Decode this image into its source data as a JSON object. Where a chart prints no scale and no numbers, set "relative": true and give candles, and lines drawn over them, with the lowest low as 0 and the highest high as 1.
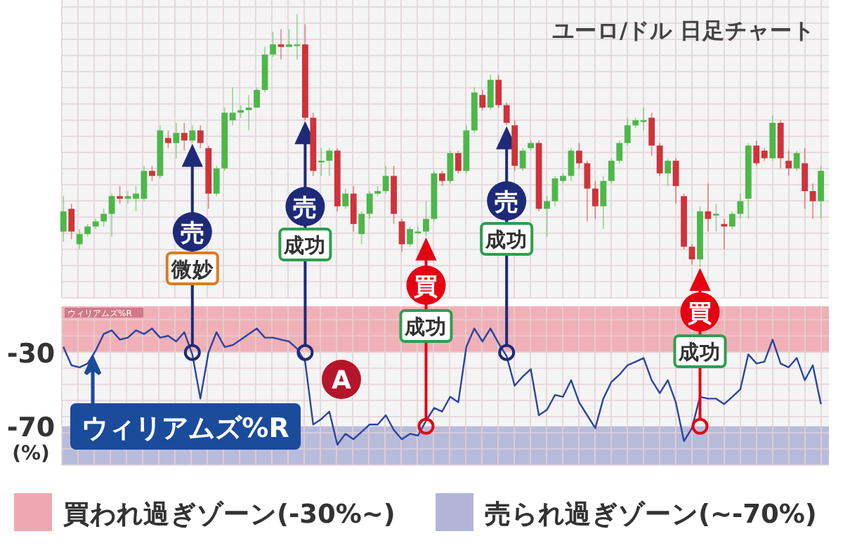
{
  "chart_data": [
    {
      "type": "candlestick",
      "title": "ユーロ/ドル 日足チャート",
      "relative": true,
      "grid": true,
      "categories": [
        null,
        null,
        null,
        null,
        null,
        null,
        null,
        null,
        null,
        null,
        null,
        null,
        null,
        null,
        null,
        null,
        null,
        null,
        null,
        null,
        null,
        null,
        null,
        null,
        null,
        null,
        null,
        null,
        null,
        null,
        null,
        null,
        null,
        null,
        null,
        null,
        null,
        null,
        null,
        null,
        null,
        null,
        null,
        null,
        null,
        null,
        null,
        null,
        null,
        null,
        null,
        null,
        null,
        null,
        null,
        null,
        null,
        null,
        null,
        null,
        null,
        null,
        null,
        null,
        null,
        null,
        null,
        null,
        null,
        null,
        null,
        null,
        null,
        null,
        null,
        null,
        null,
        null,
        null,
        null,
        null,
        null,
        null,
        null,
        null,
        null,
        null,
        null,
        null,
        null,
        null,
        null,
        null,
        null,
        null
      ],
      "ohlc": [
        [
          0.14,
          0.28,
          0.1,
          0.22
        ],
        [
          0.23,
          0.25,
          0.11,
          0.14
        ],
        [
          0.09,
          0.15,
          0.07,
          0.13
        ],
        [
          0.13,
          0.17,
          0.12,
          0.16
        ],
        [
          0.16,
          0.19,
          0.15,
          0.18
        ],
        [
          0.18,
          0.23,
          0.16,
          0.21
        ],
        [
          0.21,
          0.29,
          0.12,
          0.28
        ],
        [
          0.28,
          0.32,
          0.25,
          0.27
        ],
        [
          0.27,
          0.3,
          0.25,
          0.28
        ],
        [
          0.27,
          0.32,
          0.22,
          0.29
        ],
        [
          0.27,
          0.4,
          0.26,
          0.38
        ],
        [
          0.38,
          0.4,
          0.34,
          0.36
        ],
        [
          0.36,
          0.56,
          0.35,
          0.54
        ],
        [
          0.51,
          0.54,
          0.47,
          0.49
        ],
        [
          0.49,
          0.57,
          0.43,
          0.53
        ],
        [
          0.53,
          0.57,
          0.46,
          0.5
        ],
        [
          0.5,
          0.56,
          0.49,
          0.54
        ],
        [
          0.54,
          0.56,
          0.47,
          0.49
        ],
        [
          0.47,
          0.48,
          0.23,
          0.29
        ],
        [
          0.29,
          0.4,
          0.28,
          0.39
        ],
        [
          0.39,
          0.63,
          0.38,
          0.61
        ],
        [
          0.58,
          0.71,
          0.56,
          0.61
        ],
        [
          0.61,
          0.64,
          0.59,
          0.62
        ],
        [
          0.62,
          0.68,
          0.54,
          0.63
        ],
        [
          0.63,
          0.71,
          0.63,
          0.7
        ],
        [
          0.7,
          0.87,
          0.69,
          0.84
        ],
        [
          0.84,
          0.93,
          0.83,
          0.88
        ],
        [
          0.88,
          0.94,
          0.82,
          0.87
        ],
        [
          0.87,
          0.94,
          0.87,
          0.88
        ],
        [
          0.88,
          1.0,
          0.82,
          0.88
        ],
        [
          0.88,
          0.96,
          0.58,
          0.59
        ],
        [
          0.59,
          0.61,
          0.36,
          0.38
        ],
        [
          0.42,
          0.47,
          0.36,
          0.42
        ],
        [
          0.42,
          0.47,
          0.36,
          0.46
        ],
        [
          0.46,
          0.47,
          0.22,
          0.24
        ],
        [
          0.24,
          0.31,
          0.23,
          0.29
        ],
        [
          0.29,
          0.32,
          0.14,
          0.17
        ],
        [
          0.13,
          0.22,
          0.09,
          0.21
        ],
        [
          0.21,
          0.3,
          0.19,
          0.29
        ],
        [
          0.29,
          0.32,
          0.28,
          0.3
        ],
        [
          0.3,
          0.4,
          0.29,
          0.36
        ],
        [
          0.36,
          0.4,
          0.17,
          0.21
        ],
        [
          0.18,
          0.19,
          0.06,
          0.09
        ],
        [
          0.09,
          0.16,
          0.08,
          0.15
        ],
        [
          0.14,
          0.16,
          0.13,
          0.14
        ],
        [
          0.14,
          0.26,
          0.12,
          0.19
        ],
        [
          0.19,
          0.38,
          0.18,
          0.37
        ],
        [
          0.37,
          0.38,
          0.32,
          0.34
        ],
        [
          0.34,
          0.46,
          0.33,
          0.45
        ],
        [
          0.45,
          0.46,
          0.37,
          0.38
        ],
        [
          0.38,
          0.56,
          0.37,
          0.54
        ],
        [
          0.54,
          0.71,
          0.53,
          0.69
        ],
        [
          0.68,
          0.7,
          0.62,
          0.63
        ],
        [
          0.63,
          0.76,
          0.62,
          0.74
        ],
        [
          0.74,
          0.76,
          0.63,
          0.64
        ],
        [
          0.64,
          0.65,
          0.56,
          0.57
        ],
        [
          0.56,
          0.58,
          0.38,
          0.4
        ],
        [
          0.39,
          0.47,
          0.38,
          0.46
        ],
        [
          0.47,
          0.5,
          0.46,
          0.49
        ],
        [
          0.49,
          0.5,
          0.22,
          0.23
        ],
        [
          0.23,
          0.28,
          0.12,
          0.26
        ],
        [
          0.26,
          0.36,
          0.24,
          0.35
        ],
        [
          0.34,
          0.37,
          0.33,
          0.36
        ],
        [
          0.36,
          0.47,
          0.34,
          0.46
        ],
        [
          0.46,
          0.49,
          0.39,
          0.41
        ],
        [
          0.41,
          0.42,
          0.18,
          0.31
        ],
        [
          0.31,
          0.34,
          0.19,
          0.24
        ],
        [
          0.24,
          0.36,
          0.15,
          0.34
        ],
        [
          0.34,
          0.43,
          0.33,
          0.42
        ],
        [
          0.42,
          0.5,
          0.41,
          0.49
        ],
        [
          0.49,
          0.59,
          0.48,
          0.56
        ],
        [
          0.56,
          0.59,
          0.55,
          0.58
        ],
        [
          0.58,
          0.63,
          0.54,
          0.58
        ],
        [
          0.59,
          0.61,
          0.44,
          0.48
        ],
        [
          0.48,
          0.49,
          0.36,
          0.37
        ],
        [
          0.37,
          0.43,
          0.32,
          0.42
        ],
        [
          0.42,
          0.43,
          0.25,
          0.32
        ],
        [
          0.28,
          0.29,
          0.07,
          0.08
        ],
        [
          0.08,
          0.09,
          0.01,
          0.03
        ],
        [
          0.03,
          0.24,
          0.0,
          0.22
        ],
        [
          0.22,
          0.33,
          0.14,
          0.19
        ],
        [
          0.21,
          0.25,
          0.14,
          0.21
        ],
        [
          0.17,
          0.19,
          0.07,
          0.16
        ],
        [
          0.16,
          0.22,
          0.15,
          0.21
        ],
        [
          0.21,
          0.29,
          0.19,
          0.26
        ],
        [
          0.27,
          0.49,
          0.19,
          0.48
        ],
        [
          0.48,
          0.5,
          0.4,
          0.41
        ],
        [
          0.46,
          0.47,
          0.42,
          0.43
        ],
        [
          0.43,
          0.6,
          0.42,
          0.57
        ],
        [
          0.57,
          0.58,
          0.39,
          0.43
        ],
        [
          0.42,
          0.46,
          0.36,
          0.39
        ],
        [
          0.39,
          0.46,
          0.38,
          0.45
        ],
        [
          0.41,
          0.47,
          0.23,
          0.3
        ],
        [
          0.3,
          0.33,
          0.19,
          0.26
        ],
        [
          0.26,
          0.4,
          0.19,
          0.38
        ]
      ]
    },
    {
      "type": "line",
      "ylabel": "(%)",
      "ylim": [
        -91,
        -5
      ],
      "yticks": [
        -70,
        -30
      ],
      "grid": true,
      "legend": "bottom",
      "categories": [
        null,
        null,
        null,
        null,
        null,
        null,
        null,
        null,
        null,
        null,
        null,
        null,
        null,
        null,
        null,
        null,
        null,
        null,
        null,
        null,
        null,
        null,
        null,
        null,
        null,
        null,
        null,
        null,
        null,
        null,
        null,
        null,
        null,
        null,
        null,
        null,
        null,
        null,
        null,
        null,
        null,
        null,
        null,
        null,
        null,
        null,
        null,
        null,
        null,
        null,
        null,
        null,
        null,
        null,
        null,
        null,
        null,
        null,
        null,
        null,
        null,
        null,
        null,
        null,
        null,
        null,
        null,
        null,
        null,
        null,
        null,
        null,
        null,
        null,
        null,
        null,
        null,
        null,
        null,
        null,
        null,
        null,
        null,
        null,
        null,
        null,
        null,
        null,
        null,
        null,
        null,
        null,
        null,
        null,
        null
      ],
      "series": [
        {
          "type": "line",
          "color": "#2a44a0",
          "values": [
            -27,
            -37,
            -38,
            -36,
            -29,
            -20,
            -18,
            -23,
            -22,
            -18,
            -20,
            -17,
            -22,
            -21,
            -24,
            -19,
            -31,
            -55,
            -30,
            -19,
            -27,
            -26,
            -23,
            -20,
            -17,
            -22,
            -22,
            -23,
            -24,
            -28,
            -35,
            -69,
            -66,
            -62,
            -80,
            -74,
            -77,
            -73,
            -69,
            -69,
            -64,
            -72,
            -77,
            -74,
            -75,
            -67,
            -60,
            -62,
            -54,
            -57,
            -27,
            -17,
            -24,
            -17,
            -25,
            -32,
            -48,
            -43,
            -39,
            -64,
            -61,
            -53,
            -54,
            -45,
            -57,
            -64,
            -71,
            -55,
            -46,
            -42,
            -37,
            -35,
            -33,
            -45,
            -52,
            -45,
            -57,
            -78,
            -71,
            -54,
            -55,
            -55,
            -58,
            -54,
            -50,
            -31,
            -36,
            -35,
            -23,
            -36,
            -38,
            -33,
            -45,
            -37,
            -58
          ]
        },
        {
          "type": "scatter",
          "marker": "circle",
          "color": "#1e2a78",
          "values": [
            null,
            null,
            null,
            null,
            null,
            null,
            null,
            null,
            null,
            null,
            null,
            null,
            null,
            null,
            null,
            null,
            -30,
            null,
            null,
            null,
            null,
            null,
            null,
            null,
            null,
            null,
            null,
            null,
            null,
            null,
            -30,
            null,
            null,
            null,
            null,
            null,
            null,
            null,
            null,
            null,
            null,
            null,
            null,
            null,
            null,
            null,
            null,
            null,
            null,
            null,
            null,
            null,
            null,
            null,
            null,
            -30,
            null,
            null,
            null,
            null,
            null,
            null,
            null,
            null,
            null,
            null,
            null,
            null,
            null,
            null,
            null,
            null,
            null,
            null,
            null,
            null,
            null,
            null,
            null,
            null,
            null,
            null,
            null,
            null,
            null,
            null,
            null,
            null,
            null,
            null,
            null,
            null,
            null,
            null,
            null
          ]
        },
        {
          "type": "scatter",
          "marker": "circle",
          "color": "#e60012",
          "values": [
            null,
            null,
            null,
            null,
            null,
            null,
            null,
            null,
            null,
            null,
            null,
            null,
            null,
            null,
            null,
            null,
            null,
            null,
            null,
            null,
            null,
            null,
            null,
            null,
            null,
            null,
            null,
            null,
            null,
            null,
            null,
            null,
            null,
            null,
            null,
            null,
            null,
            null,
            null,
            null,
            null,
            null,
            null,
            null,
            null,
            -70,
            null,
            null,
            null,
            null,
            null,
            null,
            null,
            null,
            null,
            null,
            null,
            null,
            null,
            null,
            null,
            null,
            null,
            null,
            null,
            null,
            null,
            null,
            null,
            null,
            null,
            null,
            null,
            null,
            null,
            null,
            null,
            null,
            null,
            -70,
            null,
            null,
            null,
            null,
            null,
            null,
            null,
            null,
            null,
            null,
            null,
            null,
            null,
            null,
            null
          ]
        }
      ],
      "bands": [
        {
          "axis": "y",
          "from": -30,
          "to": -5,
          "label": "買われ過ぎゾーン(-30%~)",
          "color": "#f0a8b0"
        },
        {
          "axis": "y",
          "from": -91,
          "to": -70,
          "label": "売られ過ぎゾーン(~-70%)",
          "color": "#b3b5d8"
        }
      ],
      "annotations": [
        "ウィリアムズ%R",
        "ウィリアムズ%R",
        "売",
        "微妙",
        "売",
        "成功",
        "A",
        "買",
        "成功",
        "売",
        "成功",
        "買",
        "成功"
      ]
    }
  ]
}
